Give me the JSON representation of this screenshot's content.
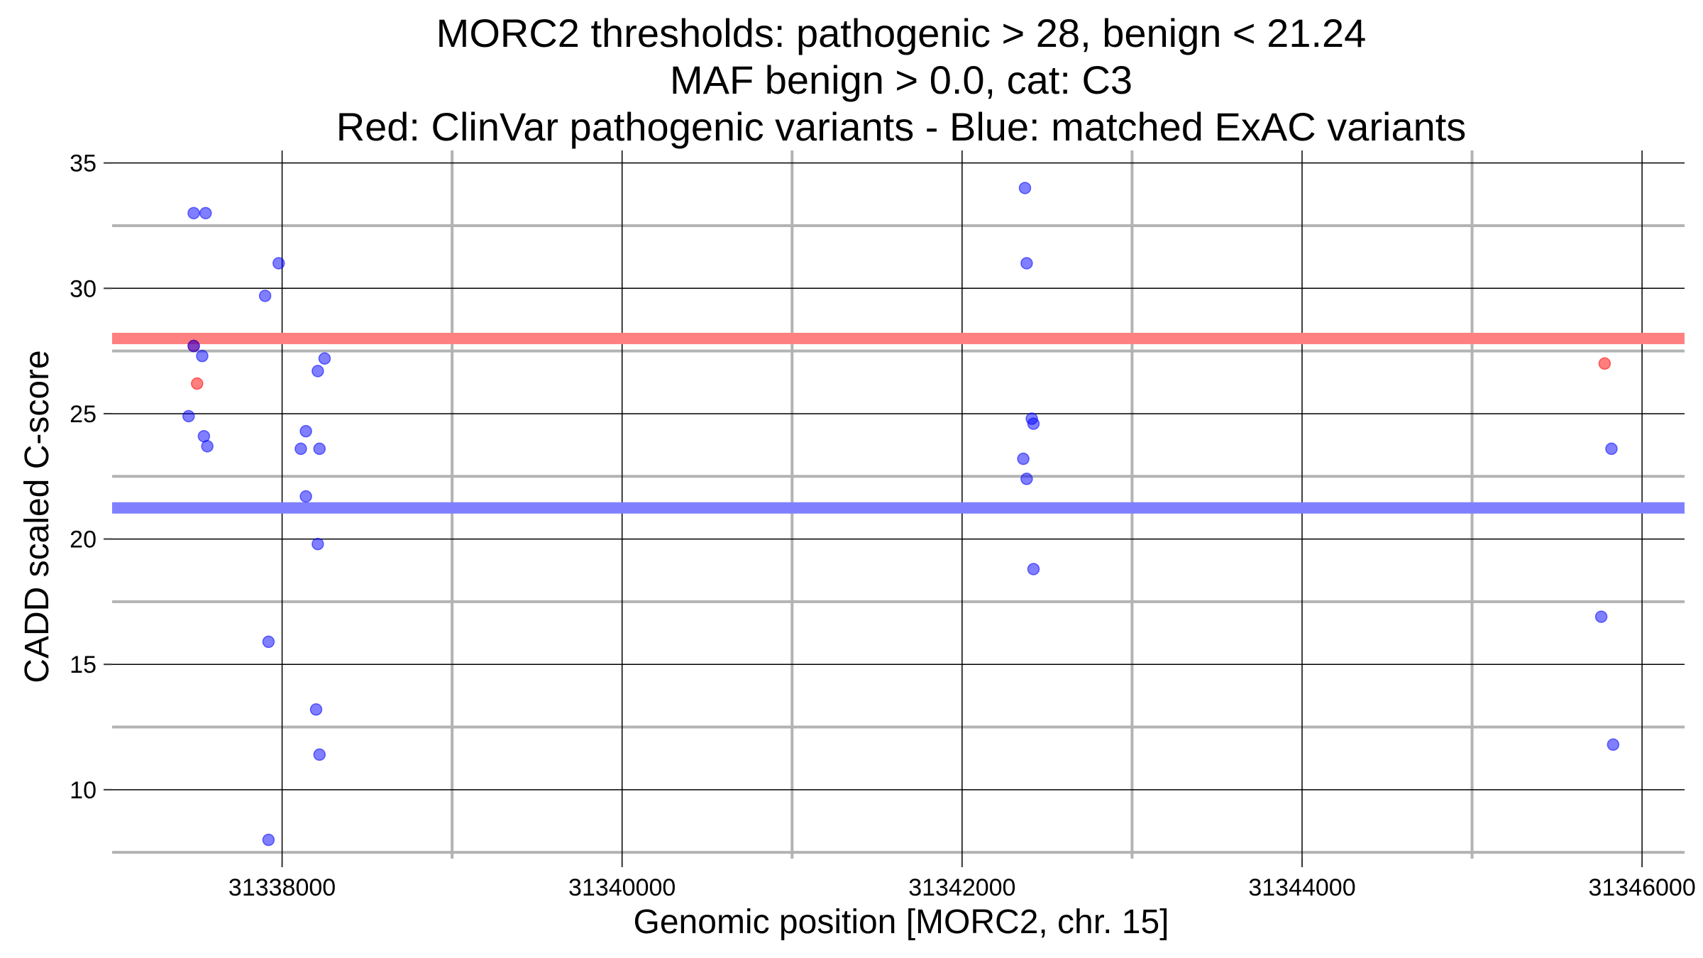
{
  "chart_data": {
    "type": "scatter",
    "title_lines": [
      "MORC2 thresholds: pathogenic > 28, benign < 21.24",
      "MAF benign > 0.0, cat: C3",
      "Red: ClinVar pathogenic variants - Blue: matched ExAC variants"
    ],
    "xlabel": "Genomic position [MORC2, chr. 15]",
    "ylabel": "CADD scaled C-score",
    "xlim": [
      31337000,
      31346250
    ],
    "ylim": [
      7.25,
      35.5
    ],
    "xticks": [
      31338000,
      31340000,
      31342000,
      31344000,
      31346000
    ],
    "xtick_labels": [
      "31338000",
      "31340000",
      "31342000",
      "31344000",
      "31346000"
    ],
    "x_minor_ticks": [
      31339000,
      31341000,
      31343000,
      31345000
    ],
    "yticks": [
      10,
      15,
      20,
      25,
      30,
      35
    ],
    "ytick_labels": [
      "10",
      "15",
      "20",
      "25",
      "30",
      "35"
    ],
    "y_minor_ticks": [
      7.5,
      12.5,
      17.5,
      22.5,
      27.5,
      32.5
    ],
    "grid": true,
    "thresholds": [
      {
        "name": "pathogenic",
        "value": 28,
        "color": "#ff8080"
      },
      {
        "name": "benign",
        "value": 21.24,
        "color": "#8080ff"
      }
    ],
    "series": [
      {
        "name": "ClinVar pathogenic variants",
        "color": "#ff0000",
        "points": [
          {
            "x": 31337480,
            "y": 27.7
          },
          {
            "x": 31337500,
            "y": 26.2
          },
          {
            "x": 31345780,
            "y": 27.0
          }
        ]
      },
      {
        "name": "matched ExAC variants",
        "color": "#0000ff",
        "points": [
          {
            "x": 31337480,
            "y": 33.0
          },
          {
            "x": 31337550,
            "y": 33.0
          },
          {
            "x": 31337480,
            "y": 27.7
          },
          {
            "x": 31337530,
            "y": 27.3
          },
          {
            "x": 31337450,
            "y": 24.9
          },
          {
            "x": 31337540,
            "y": 24.1
          },
          {
            "x": 31337560,
            "y": 23.7
          },
          {
            "x": 31337980,
            "y": 31.0
          },
          {
            "x": 31337900,
            "y": 29.7
          },
          {
            "x": 31338250,
            "y": 27.2
          },
          {
            "x": 31338210,
            "y": 26.7
          },
          {
            "x": 31338140,
            "y": 24.3
          },
          {
            "x": 31338110,
            "y": 23.6
          },
          {
            "x": 31338220,
            "y": 23.6
          },
          {
            "x": 31338140,
            "y": 21.7
          },
          {
            "x": 31338210,
            "y": 19.8
          },
          {
            "x": 31337920,
            "y": 15.9
          },
          {
            "x": 31338200,
            "y": 13.2
          },
          {
            "x": 31338220,
            "y": 11.4
          },
          {
            "x": 31337920,
            "y": 8.0
          },
          {
            "x": 31342370,
            "y": 34.0
          },
          {
            "x": 31342380,
            "y": 31.0
          },
          {
            "x": 31342410,
            "y": 24.8
          },
          {
            "x": 31342420,
            "y": 24.6
          },
          {
            "x": 31342360,
            "y": 23.2
          },
          {
            "x": 31342380,
            "y": 22.4
          },
          {
            "x": 31342420,
            "y": 18.8
          },
          {
            "x": 31345820,
            "y": 23.6
          },
          {
            "x": 31345760,
            "y": 16.9
          },
          {
            "x": 31345830,
            "y": 11.8
          }
        ]
      }
    ]
  }
}
